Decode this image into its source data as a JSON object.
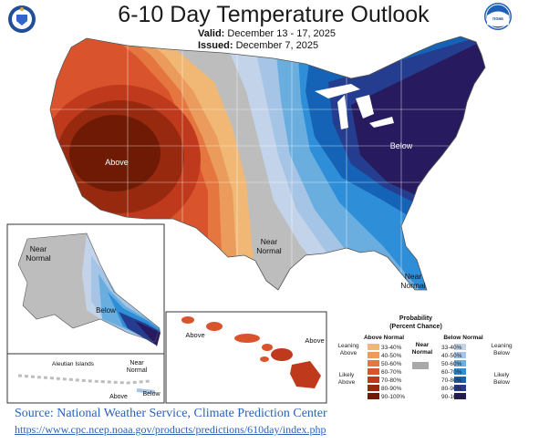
{
  "title": "6-10 Day Temperature Outlook",
  "valid_label": "Valid:",
  "valid_dates": "December 13 - 17, 2025",
  "issued_label": "Issued:",
  "issued_date": "December 7, 2025",
  "logos": {
    "left": "doc-seal-icon",
    "right": "noaa-logo-icon"
  },
  "map_labels": {
    "above_west": "Above",
    "below_east": "Below",
    "near_normal_plains": "Near\nNormal",
    "near_normal_florida": "Near\nNormal",
    "alaska_near_normal": "Near\nNormal",
    "alaska_below": "Below",
    "aleutian": "Aleutian Islands",
    "aleutian_near_normal": "Near\nNormal",
    "aleutian_above": "Above",
    "aleutian_below": "Below",
    "hawaii_above_left": "Above",
    "hawaii_above_right": "Above"
  },
  "legend": {
    "title": "Probability\n(Percent Chance)",
    "above_header": "Above Normal",
    "near_header": "Near\nNormal",
    "below_header": "Below Normal",
    "leaning_above": "Leaning\nAbove",
    "likely_above": "Likely\nAbove",
    "leaning_below": "Leaning\nBelow",
    "likely_below": "Likely\nBelow",
    "bins": [
      "33-40%",
      "40-50%",
      "50-60%",
      "60-70%",
      "70-80%",
      "80-90%",
      "90-100%"
    ],
    "above_colors": [
      "#f0b775",
      "#eb9b5c",
      "#e5763f",
      "#d9542c",
      "#bf3a1d",
      "#97290f",
      "#6e1a04"
    ],
    "below_colors": [
      "#c3d4ea",
      "#a6c5e6",
      "#6aaee0",
      "#2e8ed8",
      "#1563b6",
      "#243d8f",
      "#271a5e"
    ],
    "near_color": "#a9a9a9"
  },
  "source": "Source: National Weather Service, Climate Prediction Center",
  "url": "https://www.cpc.ncep.noaa.gov/products/predictions/610day/index.php"
}
